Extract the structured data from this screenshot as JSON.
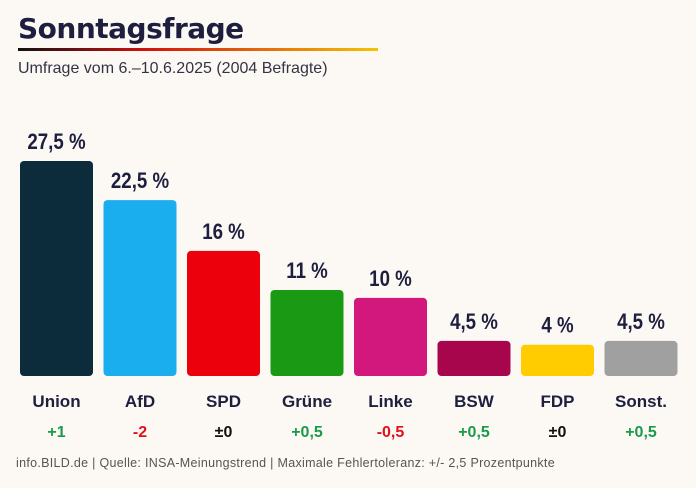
{
  "title": "Sonntagsfrage",
  "subtitle": "Umfrage vom 6.–10.6.2025 (2004 Befragte)",
  "footer": "info.BILD.de | Quelle: INSA-Meinungstrend | Maximale Fehlertoleranz: +/- 2,5 Prozentpunkte",
  "colors": {
    "background": "#fcf9f4",
    "positive": "#1a9a4a",
    "negative": "#e0101a",
    "neutral": "#111111"
  },
  "chart_data": {
    "type": "bar",
    "categories": [
      "Union",
      "AfD",
      "SPD",
      "Grüne",
      "Linke",
      "BSW",
      "FDP",
      "Sonst."
    ],
    "values": [
      27.5,
      22.5,
      16,
      11,
      10,
      4.5,
      4,
      4.5
    ],
    "value_labels": [
      "27,5 %",
      "22,5 %",
      "16 %",
      "11 %",
      "10 %",
      "4,5 %",
      "4 %",
      "4,5 %"
    ],
    "changes": [
      "+1",
      "-2",
      "±0",
      "+0,5",
      "-0,5",
      "+0,5",
      "±0",
      "+0,5"
    ],
    "change_direction": [
      "positive",
      "negative",
      "neutral",
      "positive",
      "negative",
      "positive",
      "neutral",
      "positive"
    ],
    "bar_colors": [
      "#0c2b3b",
      "#1aaeee",
      "#ec000c",
      "#1a9a14",
      "#d2187c",
      "#a8064c",
      "#ffcc00",
      "#a0a0a0"
    ],
    "ylim": [
      0,
      27.5
    ],
    "grid": false,
    "legend": "none"
  }
}
